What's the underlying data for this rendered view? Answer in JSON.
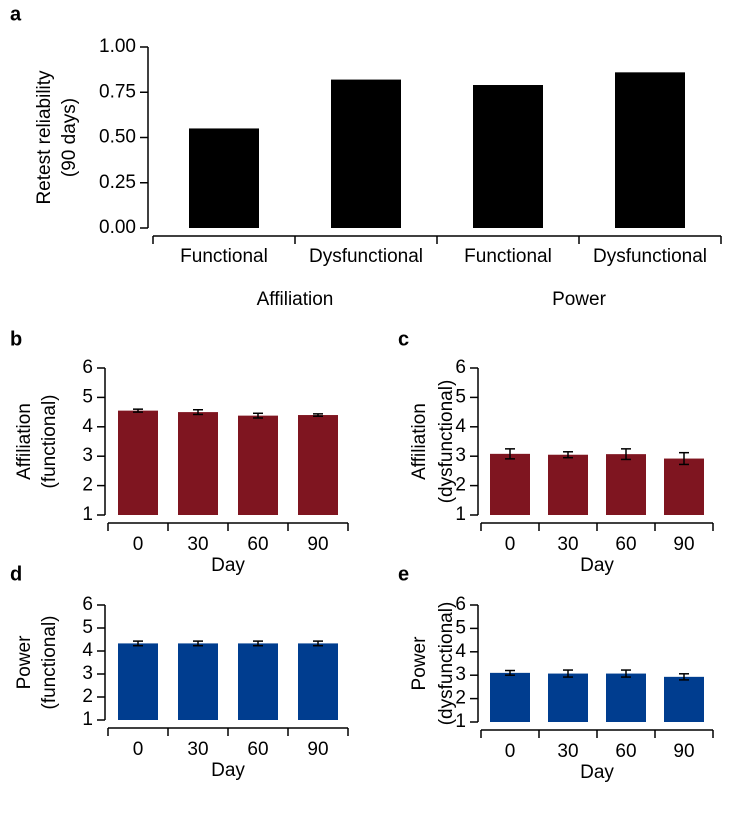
{
  "chart_data": [
    {
      "type": "bar",
      "panel_label": "a",
      "ylabel": [
        "Retest reliability",
        "(90 days)"
      ],
      "categories": [
        "Functional",
        "Dysfunctional",
        "Functional",
        "Dysfunctional"
      ],
      "group_labels": [
        "Affiliation",
        "Power"
      ],
      "values": [
        0.55,
        0.82,
        0.79,
        0.86
      ],
      "color": "#000000",
      "ylim": [
        0,
        1
      ],
      "yticks": [
        {
          "value": 0,
          "label": "0.00"
        },
        {
          "value": 0.25,
          "label": "0.25"
        },
        {
          "value": 0.5,
          "label": "0.50"
        },
        {
          "value": 0.75,
          "label": "0.75"
        },
        {
          "value": 1,
          "label": "1.00"
        }
      ]
    },
    {
      "type": "bar",
      "panel_label": "b",
      "ylabel": [
        "Affiliation",
        "(functional)"
      ],
      "xlabel": "Day",
      "categories": [
        "0",
        "30",
        "60",
        "90"
      ],
      "values": [
        4.55,
        4.5,
        4.38,
        4.4
      ],
      "errors": [
        0.05,
        0.08,
        0.08,
        0.04
      ],
      "color": "#7f1520",
      "ylim": [
        1,
        6
      ],
      "yticks": [
        1,
        2,
        3,
        4,
        5,
        6
      ]
    },
    {
      "type": "bar",
      "panel_label": "c",
      "ylabel": [
        "Affiliation",
        "(dysfunctional)"
      ],
      "xlabel": "Day",
      "categories": [
        "0",
        "30",
        "60",
        "90"
      ],
      "values": [
        3.08,
        3.05,
        3.07,
        2.92
      ],
      "errors": [
        0.17,
        0.1,
        0.18,
        0.2
      ],
      "color": "#7f1520",
      "ylim": [
        1,
        6
      ],
      "yticks": [
        1,
        2,
        3,
        4,
        5,
        6
      ]
    },
    {
      "type": "bar",
      "panel_label": "d",
      "ylabel": [
        "Power",
        "(functional)"
      ],
      "xlabel": "Day",
      "categories": [
        "0",
        "30",
        "60",
        "90"
      ],
      "values": [
        4.33,
        4.33,
        4.33,
        4.33
      ],
      "errors": [
        0.1,
        0.1,
        0.1,
        0.1
      ],
      "color": "#003d8f",
      "ylim": [
        1,
        6
      ],
      "yticks": [
        1,
        2,
        3,
        4,
        5,
        6
      ]
    },
    {
      "type": "bar",
      "panel_label": "e",
      "ylabel": [
        "Power",
        "(dysfunctional)"
      ],
      "xlabel": "Day",
      "categories": [
        "0",
        "30",
        "60",
        "90"
      ],
      "values": [
        3.1,
        3.07,
        3.07,
        2.93
      ],
      "errors": [
        0.1,
        0.15,
        0.15,
        0.13
      ],
      "color": "#003d8f",
      "ylim": [
        1,
        6
      ],
      "yticks": [
        1,
        2,
        3,
        4,
        5,
        6
      ]
    }
  ]
}
